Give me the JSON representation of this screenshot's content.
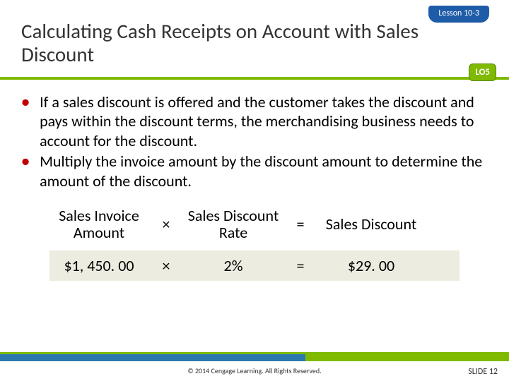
{
  "lesson_tab": "Lesson 10-3",
  "title": "Calculating Cash Receipts on Account with Sales Discount",
  "lo_badge": "LO5",
  "bullets": [
    "If a sales discount is offered and the customer takes the discount and pays within the discount terms, the merchandising business needs to account for the discount.",
    "Multiply the invoice amount by the discount amount to determine the amount of the discount."
  ],
  "formula": {
    "labels": {
      "a": "Sales Invoice Amount",
      "op1": "×",
      "b": "Sales Discount Rate",
      "op2": "=",
      "c": "Sales Discount"
    },
    "values": {
      "a": "$1, 450. 00",
      "op1": "×",
      "b": "2%",
      "op2": "=",
      "c": "$29. 00"
    },
    "value_row_bg": "#ecece0"
  },
  "colors": {
    "green": "#7fba00",
    "blue": "#1f5ca8",
    "bullet_red": "#c00000",
    "footer_blue": "#2a7ab0"
  },
  "copyright": "© 2014 Cengage Learning. All Rights Reserved.",
  "slide_label": "SLIDE 12"
}
